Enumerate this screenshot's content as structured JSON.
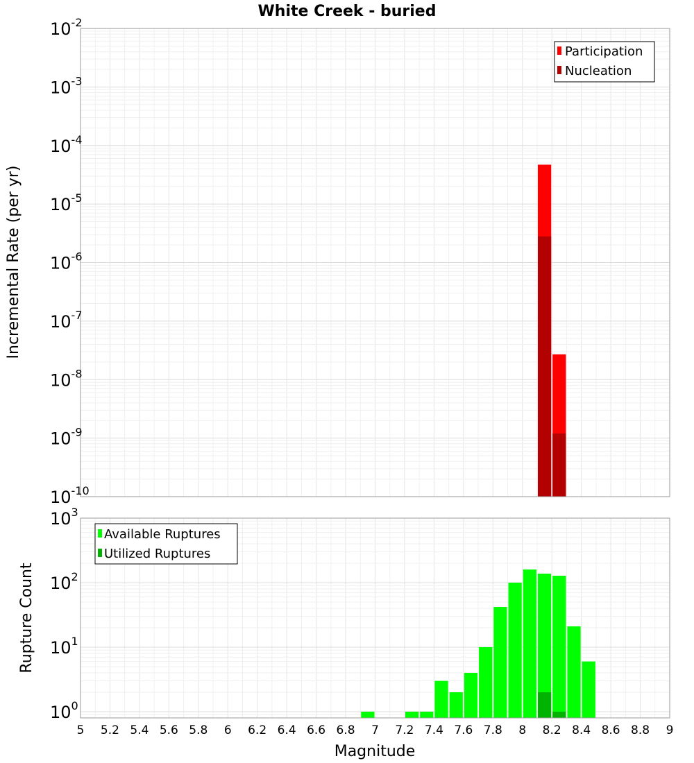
{
  "chart_data": [
    {
      "type": "bar",
      "title": "White Creek - buried",
      "xlabel": "",
      "ylabel": "Incremental Rate (per yr)",
      "yscale": "log",
      "ylim": [
        1e-10,
        0.01
      ],
      "xlim": [
        5,
        9
      ],
      "y_tick_labels": [
        {
          "base": "10",
          "exp": "-2"
        },
        {
          "base": "10",
          "exp": "-3"
        },
        {
          "base": "10",
          "exp": "-4"
        },
        {
          "base": "10",
          "exp": "-5"
        },
        {
          "base": "10",
          "exp": "-6"
        },
        {
          "base": "10",
          "exp": "-7"
        },
        {
          "base": "10",
          "exp": "-8"
        },
        {
          "base": "10",
          "exp": "-9"
        },
        {
          "base": "10",
          "exp": "-10"
        }
      ],
      "legend_placement": "top-right",
      "series": [
        {
          "name": "Participation",
          "color": "#ff0000",
          "points": [
            {
              "x": 8.15,
              "y": 4.7e-05
            },
            {
              "x": 8.25,
              "y": 2.7e-08
            }
          ]
        },
        {
          "name": "Nucleation",
          "color": "#b30000",
          "points": [
            {
              "x": 8.15,
              "y": 2.8e-06
            },
            {
              "x": 8.25,
              "y": 1.2e-09
            }
          ]
        }
      ]
    },
    {
      "type": "bar",
      "xlabel": "Magnitude",
      "ylabel": "Rupture Count",
      "yscale": "log",
      "ylim": [
        0.8,
        1000
      ],
      "xlim": [
        5,
        9
      ],
      "x_tick_labels": [
        "5",
        "5.2",
        "5.4",
        "5.6",
        "5.8",
        "6",
        "6.2",
        "6.4",
        "6.6",
        "6.8",
        "7",
        "7.2",
        "7.4",
        "7.6",
        "7.8",
        "8",
        "8.2",
        "8.4",
        "8.6",
        "8.8",
        "9"
      ],
      "y_tick_labels": [
        {
          "base": "10",
          "exp": "3"
        },
        {
          "base": "10",
          "exp": "2"
        },
        {
          "base": "10",
          "exp": "1"
        },
        {
          "base": "10",
          "exp": "0"
        }
      ],
      "legend_placement": "top-left",
      "series": [
        {
          "name": "Available Ruptures",
          "color": "#00ff00",
          "points": [
            {
              "x": 6.95,
              "y": 1
            },
            {
              "x": 7.25,
              "y": 1
            },
            {
              "x": 7.35,
              "y": 1
            },
            {
              "x": 7.45,
              "y": 3
            },
            {
              "x": 7.55,
              "y": 2
            },
            {
              "x": 7.65,
              "y": 4
            },
            {
              "x": 7.75,
              "y": 10
            },
            {
              "x": 7.85,
              "y": 42
            },
            {
              "x": 7.95,
              "y": 100
            },
            {
              "x": 8.05,
              "y": 160
            },
            {
              "x": 8.15,
              "y": 138
            },
            {
              "x": 8.25,
              "y": 128
            },
            {
              "x": 8.35,
              "y": 21
            },
            {
              "x": 8.45,
              "y": 6
            }
          ]
        },
        {
          "name": "Utilized Ruptures",
          "color": "#00b300",
          "points": [
            {
              "x": 8.15,
              "y": 2
            },
            {
              "x": 8.25,
              "y": 1
            }
          ]
        }
      ]
    }
  ]
}
